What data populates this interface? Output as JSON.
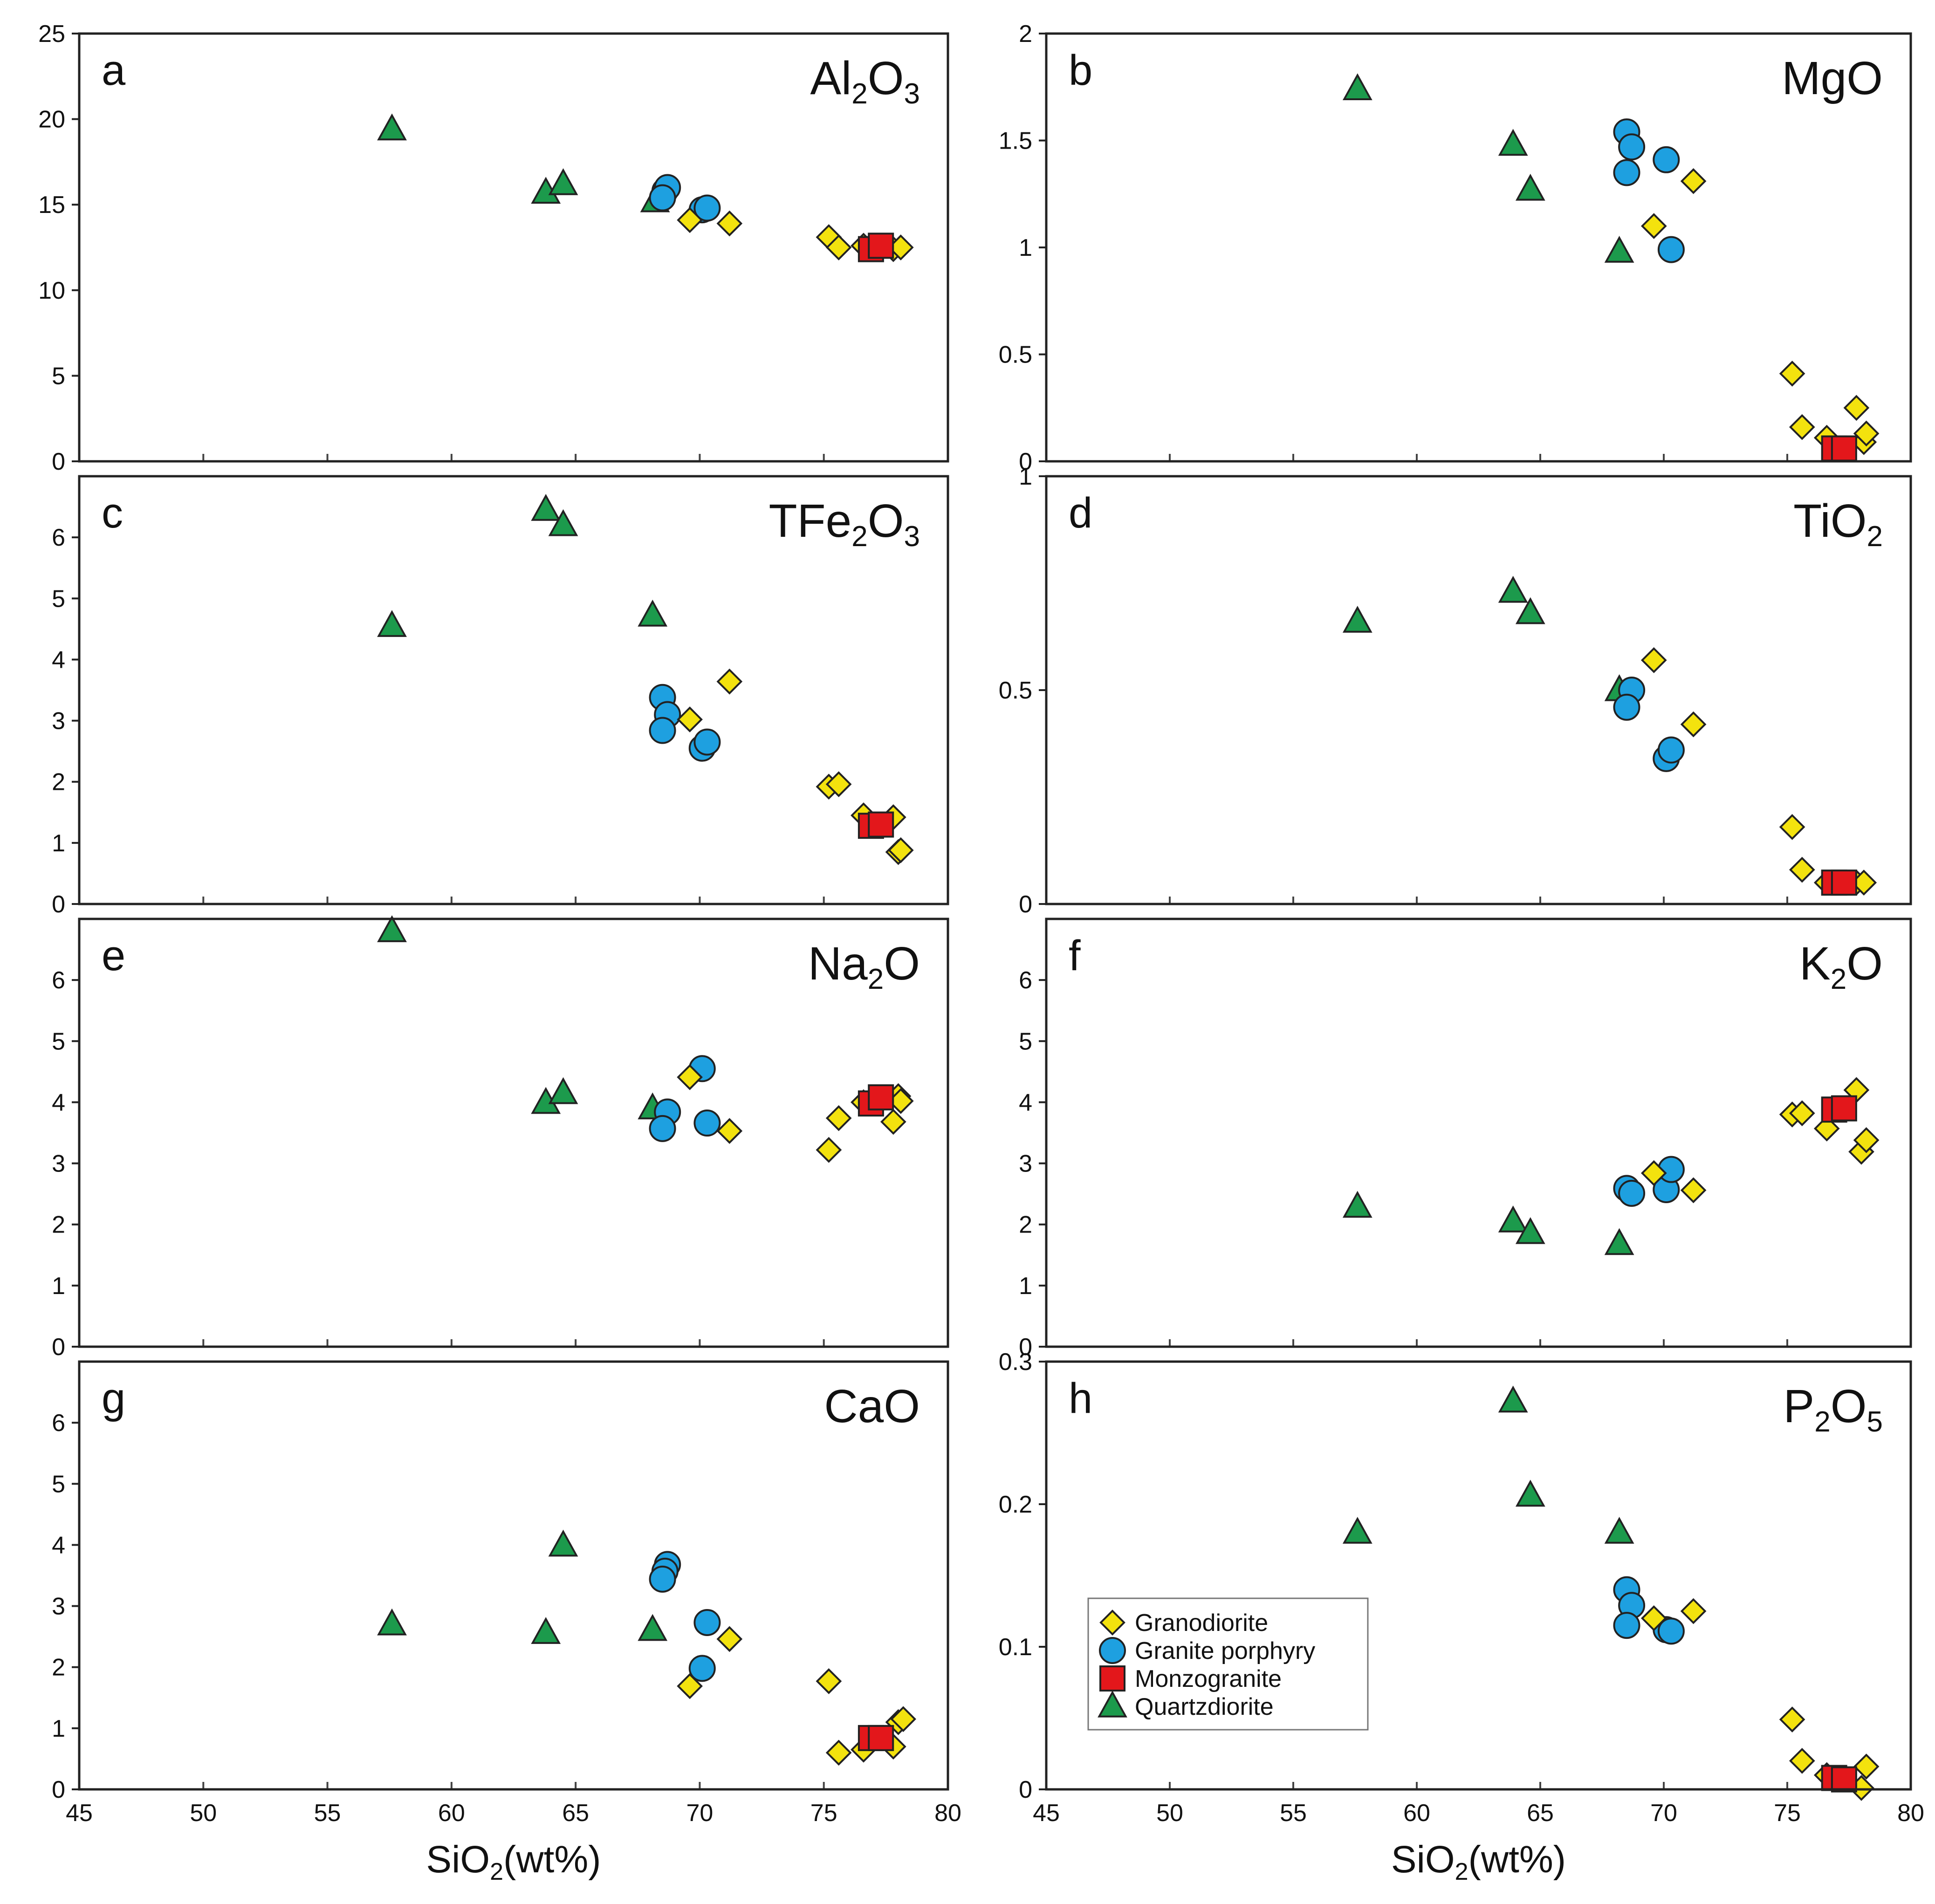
{
  "colors": {
    "granodiorite": "#f3e20e",
    "granite_porphyry": "#1ea0e0",
    "monzogranite": "#e3171b",
    "quartzdiorite": "#1c9a4c",
    "stroke": "#222222"
  },
  "legend": {
    "placement": "lower-left of panel h",
    "items": [
      {
        "key": "granodiorite",
        "label": "Granodiorite",
        "shape": "diamond"
      },
      {
        "key": "granite_porphyry",
        "label": "Granite porphyry",
        "shape": "circle"
      },
      {
        "key": "monzogranite",
        "label": "Monzogranite",
        "shape": "square"
      },
      {
        "key": "quartzdiorite",
        "label": "Quartzdiorite",
        "shape": "triangle"
      }
    ]
  },
  "xaxis": {
    "label_main": "SiO",
    "label_sub": "2",
    "label_tail": "(wt%)",
    "xlim": [
      45,
      80
    ],
    "ticks": [
      "45",
      "50",
      "55",
      "60",
      "65",
      "70",
      "75",
      "80"
    ]
  },
  "chart_data": [
    {
      "type": "scatter",
      "panel": "a",
      "title_parts": [
        "Al",
        "2",
        "O",
        "3"
      ],
      "ylim": [
        0,
        25
      ],
      "yticks": [
        "0",
        "5",
        "10",
        "15",
        "20",
        "25"
      ],
      "series": [
        {
          "key": "quartzdiorite",
          "name": "Quartzdiorite",
          "points": [
            [
              57.6,
              19.4
            ],
            [
              63.8,
              15.7
            ],
            [
              64.5,
              16.2
            ],
            [
              68.2,
              15.2
            ]
          ]
        },
        {
          "key": "granite_porphyry",
          "name": "Granite porphyry",
          "points": [
            [
              68.6,
              15.8
            ],
            [
              68.7,
              16.0
            ],
            [
              68.5,
              15.4
            ],
            [
              70.1,
              14.7
            ],
            [
              70.3,
              14.8
            ]
          ]
        },
        {
          "key": "granodiorite",
          "name": "Granodiorite",
          "points": [
            [
              69.6,
              14.1
            ],
            [
              71.2,
              13.9
            ],
            [
              75.2,
              13.1
            ],
            [
              75.6,
              12.5
            ],
            [
              76.6,
              12.6
            ],
            [
              77.8,
              12.4
            ],
            [
              78.1,
              12.5
            ]
          ]
        },
        {
          "key": "monzogranite",
          "name": "Monzogranite",
          "points": [
            [
              76.9,
              12.4
            ],
            [
              77.3,
              12.6
            ]
          ]
        }
      ]
    },
    {
      "type": "scatter",
      "panel": "b",
      "title_parts": [
        "MgO"
      ],
      "ylim": [
        0,
        2
      ],
      "yticks": [
        "0",
        "0.5",
        "1",
        "1.5",
        "2"
      ],
      "series": [
        {
          "key": "quartzdiorite",
          "name": "Quartzdiorite",
          "points": [
            [
              57.6,
              1.74
            ],
            [
              63.9,
              1.48
            ],
            [
              64.6,
              1.27
            ],
            [
              68.2,
              0.98
            ]
          ]
        },
        {
          "key": "granite_porphyry",
          "name": "Granite porphyry",
          "points": [
            [
              68.5,
              1.54
            ],
            [
              68.7,
              1.47
            ],
            [
              68.5,
              1.35
            ],
            [
              70.1,
              1.41
            ],
            [
              70.3,
              0.99
            ]
          ]
        },
        {
          "key": "granodiorite",
          "name": "Granodiorite",
          "points": [
            [
              69.6,
              1.1
            ],
            [
              71.2,
              1.31
            ],
            [
              75.2,
              0.41
            ],
            [
              75.6,
              0.16
            ],
            [
              76.6,
              0.11
            ],
            [
              77.8,
              0.25
            ],
            [
              78.1,
              0.09
            ],
            [
              78.2,
              0.13
            ]
          ]
        },
        {
          "key": "monzogranite",
          "name": "Monzogranite",
          "points": [
            [
              76.9,
              0.06
            ],
            [
              77.3,
              0.06
            ]
          ]
        }
      ]
    },
    {
      "type": "scatter",
      "panel": "c",
      "title_parts": [
        "TFe",
        "2",
        "O",
        "3"
      ],
      "ylim": [
        0,
        7
      ],
      "yticks": [
        "0",
        "1",
        "2",
        "3",
        "4",
        "5",
        "6"
      ],
      "series": [
        {
          "key": "quartzdiorite",
          "name": "Quartzdiorite",
          "points": [
            [
              57.6,
              4.55
            ],
            [
              63.8,
              6.45
            ],
            [
              64.5,
              6.2
            ],
            [
              68.1,
              4.72
            ]
          ]
        },
        {
          "key": "granite_porphyry",
          "name": "Granite porphyry",
          "points": [
            [
              68.5,
              3.38
            ],
            [
              68.7,
              3.1
            ],
            [
              68.5,
              2.84
            ],
            [
              70.1,
              2.55
            ],
            [
              70.3,
              2.65
            ]
          ]
        },
        {
          "key": "granodiorite",
          "name": "Granodiorite",
          "points": [
            [
              69.6,
              3.02
            ],
            [
              71.2,
              3.64
            ],
            [
              75.2,
              1.92
            ],
            [
              75.6,
              1.96
            ],
            [
              76.6,
              1.45
            ],
            [
              77.8,
              1.42
            ],
            [
              78.0,
              0.85
            ],
            [
              78.1,
              0.88
            ]
          ]
        },
        {
          "key": "monzogranite",
          "name": "Monzogranite",
          "points": [
            [
              76.9,
              1.28
            ],
            [
              77.3,
              1.3
            ]
          ]
        }
      ]
    },
    {
      "type": "scatter",
      "panel": "d",
      "title_parts": [
        "TiO",
        "2"
      ],
      "ylim": [
        0,
        1
      ],
      "yticks": [
        "0",
        "0.5",
        "1"
      ],
      "series": [
        {
          "key": "quartzdiorite",
          "name": "Quartzdiorite",
          "points": [
            [
              57.6,
              0.66
            ],
            [
              63.9,
              0.73
            ],
            [
              64.6,
              0.68
            ],
            [
              68.2,
              0.5
            ]
          ]
        },
        {
          "key": "granite_porphyry",
          "name": "Granite porphyry",
          "points": [
            [
              68.7,
              0.5
            ],
            [
              68.5,
              0.46
            ],
            [
              70.1,
              0.34
            ],
            [
              70.3,
              0.36
            ]
          ]
        },
        {
          "key": "granodiorite",
          "name": "Granodiorite",
          "points": [
            [
              69.6,
              0.57
            ],
            [
              71.2,
              0.42
            ],
            [
              75.2,
              0.18
            ],
            [
              75.6,
              0.08
            ],
            [
              76.6,
              0.05
            ],
            [
              77.8,
              0.05
            ],
            [
              78.1,
              0.05
            ]
          ]
        },
        {
          "key": "monzogranite",
          "name": "Monzogranite",
          "points": [
            [
              76.9,
              0.05
            ],
            [
              77.3,
              0.05
            ]
          ]
        }
      ]
    },
    {
      "type": "scatter",
      "panel": "e",
      "title_parts": [
        "Na",
        "2",
        "O"
      ],
      "ylim": [
        0,
        7
      ],
      "yticks": [
        "0",
        "1",
        "2",
        "3",
        "4",
        "5",
        "6"
      ],
      "series": [
        {
          "key": "quartzdiorite",
          "name": "Quartzdiorite",
          "points": [
            [
              57.6,
              6.8
            ],
            [
              63.8,
              3.99
            ],
            [
              64.5,
              4.15
            ],
            [
              68.1,
              3.9
            ]
          ]
        },
        {
          "key": "granite_porphyry",
          "name": "Granite porphyry",
          "points": [
            [
              68.7,
              3.84
            ],
            [
              68.5,
              3.57
            ],
            [
              70.1,
              4.55
            ],
            [
              70.3,
              3.66
            ]
          ]
        },
        {
          "key": "granodiorite",
          "name": "Granodiorite",
          "points": [
            [
              69.6,
              4.41
            ],
            [
              71.2,
              3.53
            ],
            [
              75.2,
              3.22
            ],
            [
              75.6,
              3.74
            ],
            [
              76.6,
              4.0
            ],
            [
              77.8,
              3.68
            ],
            [
              78.0,
              4.1
            ],
            [
              78.1,
              4.02
            ]
          ]
        },
        {
          "key": "monzogranite",
          "name": "Monzogranite",
          "points": [
            [
              76.9,
              3.98
            ],
            [
              77.3,
              4.08
            ]
          ]
        }
      ]
    },
    {
      "type": "scatter",
      "panel": "f",
      "title_parts": [
        "K",
        "2",
        "O"
      ],
      "ylim": [
        0,
        7
      ],
      "yticks": [
        "0",
        "1",
        "2",
        "3",
        "4",
        "5",
        "6"
      ],
      "series": [
        {
          "key": "quartzdiorite",
          "name": "Quartzdiorite",
          "points": [
            [
              57.6,
              2.29
            ],
            [
              63.9,
              2.05
            ],
            [
              64.6,
              1.86
            ],
            [
              68.2,
              1.68
            ]
          ]
        },
        {
          "key": "granite_porphyry",
          "name": "Granite porphyry",
          "points": [
            [
              68.5,
              2.59
            ],
            [
              68.7,
              2.51
            ],
            [
              70.1,
              2.57
            ],
            [
              70.3,
              2.9
            ]
          ]
        },
        {
          "key": "granodiorite",
          "name": "Granodiorite",
          "points": [
            [
              69.6,
              2.84
            ],
            [
              71.2,
              2.56
            ],
            [
              75.2,
              3.8
            ],
            [
              75.6,
              3.82
            ],
            [
              76.6,
              3.57
            ],
            [
              77.8,
              4.2
            ],
            [
              78.0,
              3.19
            ],
            [
              78.2,
              3.38
            ]
          ]
        },
        {
          "key": "monzogranite",
          "name": "Monzogranite",
          "points": [
            [
              76.9,
              3.88
            ],
            [
              77.3,
              3.9
            ]
          ]
        }
      ]
    },
    {
      "type": "scatter",
      "panel": "g",
      "title_parts": [
        "CaO"
      ],
      "ylim": [
        0,
        7
      ],
      "yticks": [
        "0",
        "1",
        "2",
        "3",
        "4",
        "5",
        "6"
      ],
      "series": [
        {
          "key": "quartzdiorite",
          "name": "Quartzdiorite",
          "points": [
            [
              57.6,
              2.7
            ],
            [
              63.8,
              2.56
            ],
            [
              64.5,
              3.99
            ],
            [
              68.1,
              2.61
            ]
          ]
        },
        {
          "key": "granite_porphyry",
          "name": "Granite porphyry",
          "points": [
            [
              68.7,
              3.68
            ],
            [
              68.6,
              3.57
            ],
            [
              68.5,
              3.44
            ],
            [
              70.3,
              2.73
            ],
            [
              70.1,
              1.98
            ]
          ]
        },
        {
          "key": "granodiorite",
          "name": "Granodiorite",
          "points": [
            [
              69.6,
              1.69
            ],
            [
              71.2,
              2.46
            ],
            [
              75.2,
              1.77
            ],
            [
              75.6,
              0.6
            ],
            [
              76.6,
              0.65
            ],
            [
              77.8,
              0.7
            ],
            [
              78.0,
              1.1
            ],
            [
              78.2,
              1.15
            ]
          ]
        },
        {
          "key": "monzogranite",
          "name": "Monzogranite",
          "points": [
            [
              76.9,
              0.84
            ],
            [
              77.3,
              0.84
            ]
          ]
        }
      ]
    },
    {
      "type": "scatter",
      "panel": "h",
      "title_parts": [
        "P",
        "2",
        "O",
        "5"
      ],
      "ylim": [
        0,
        0.3
      ],
      "yticks": [
        "0",
        "0.1",
        "0.2",
        "0.3"
      ],
      "series": [
        {
          "key": "quartzdiorite",
          "name": "Quartzdiorite",
          "points": [
            [
              57.6,
              0.18
            ],
            [
              63.9,
              0.272
            ],
            [
              64.6,
              0.206
            ],
            [
              68.2,
              0.18
            ]
          ]
        },
        {
          "key": "granite_porphyry",
          "name": "Granite porphyry",
          "points": [
            [
              68.5,
              0.14
            ],
            [
              68.7,
              0.129
            ],
            [
              68.5,
              0.115
            ],
            [
              70.1,
              0.112
            ],
            [
              70.3,
              0.111
            ]
          ]
        },
        {
          "key": "granodiorite",
          "name": "Granodiorite",
          "points": [
            [
              69.6,
              0.12
            ],
            [
              71.2,
              0.125
            ],
            [
              75.2,
              0.049
            ],
            [
              75.6,
              0.02
            ],
            [
              76.6,
              0.01
            ],
            [
              78.0,
              0.001
            ],
            [
              78.2,
              0.016
            ]
          ]
        },
        {
          "key": "monzogranite",
          "name": "Monzogranite",
          "points": [
            [
              76.9,
              0.008
            ],
            [
              77.3,
              0.007
            ]
          ]
        }
      ]
    }
  ]
}
